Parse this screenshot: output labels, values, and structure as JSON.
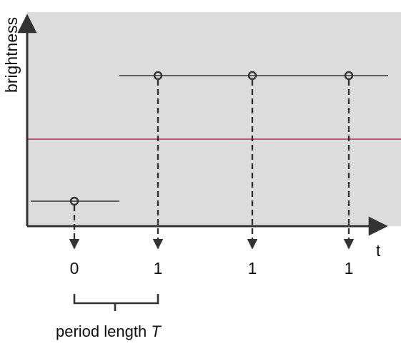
{
  "axes": {
    "y_label": "brightness",
    "x_label": "t"
  },
  "threshold": {
    "color": "#b0305a"
  },
  "signal": {
    "color": "#333333",
    "low_level": "low",
    "high_level": "high"
  },
  "samples": [
    {
      "value": "0",
      "level": "low"
    },
    {
      "value": "1",
      "level": "high"
    },
    {
      "value": "1",
      "level": "high"
    },
    {
      "value": "1",
      "level": "high"
    }
  ],
  "period": {
    "label": "period length",
    "symbol": "T"
  },
  "colors": {
    "plot_background": "#dcdcdc",
    "axis": "#333333",
    "threshold_line": "#b0305a"
  }
}
